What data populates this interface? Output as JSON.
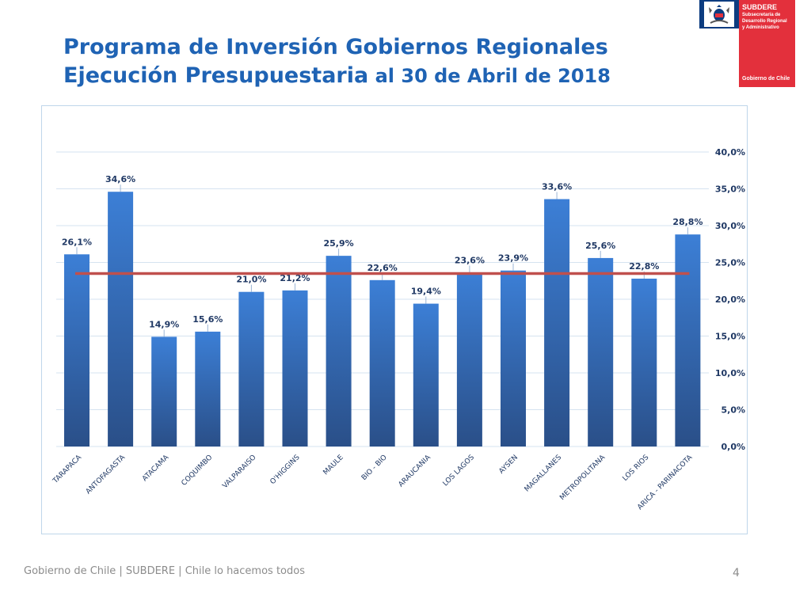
{
  "header": {
    "title_line1": "Programa de Inversión Gobiernos Regionales",
    "title_line2_main": "Ejecución Presupuestaria",
    "title_line2_rest": " al 30 de Abril de 2018"
  },
  "logo": {
    "name": "SUBDERE",
    "subtitle_1": "Subsecretaría de",
    "subtitle_2": "Desarrollo Regional",
    "subtitle_3": "y Administrativo",
    "government": "Gobierno de Chile",
    "colors": {
      "blue": "#0c3c80",
      "red": "#e3303c"
    }
  },
  "chart_data": {
    "type": "bar",
    "title": "",
    "xlabel": "",
    "ylabel": "",
    "categories": [
      "TARAPACA",
      "ANTOFAGASTA",
      "ATACAMA",
      "COQUIMBO",
      "VALPARAISO",
      "O'HIGGINS",
      "MAULE",
      "BIO - BIO",
      "ARAUCANIA",
      "LOS LAGOS",
      "AYSEN",
      "MAGALLANES",
      "METROPOLITANA",
      "LOS RIOS",
      "ARICA - PARINACOTA"
    ],
    "values": [
      26.1,
      34.6,
      14.9,
      15.6,
      21.0,
      21.2,
      25.9,
      22.6,
      19.4,
      23.6,
      23.9,
      33.6,
      25.6,
      22.8,
      28.8
    ],
    "value_labels": [
      "26,1%",
      "34,6%",
      "14,9%",
      "15,6%",
      "21,0%",
      "21,2%",
      "25,9%",
      "22,6%",
      "19,4%",
      "23,6%",
      "23,9%",
      "33,6%",
      "25,6%",
      "22,8%",
      "28,8%"
    ],
    "ylim": [
      0,
      40
    ],
    "y_ticks": [
      0,
      5,
      10,
      15,
      20,
      25,
      30,
      35,
      40
    ],
    "y_tick_labels": [
      "0,0%",
      "5,0%",
      "10,0%",
      "15,0%",
      "20,0%",
      "25,0%",
      "30,0%",
      "35,0%",
      "40,0%"
    ],
    "y_axis_side": "right",
    "grid": true,
    "reference_line": {
      "value": 23.5
    },
    "colors": {
      "bar_top": "#3c7fd6",
      "bar_bottom": "#2a4f88",
      "reference": "#c0504d",
      "grid": "#d5e3f0",
      "label": "#1f3864"
    }
  },
  "footer": {
    "left_text": "Gobierno de Chile | SUBDERE | Chile lo hacemos todos",
    "page_number": "4"
  }
}
